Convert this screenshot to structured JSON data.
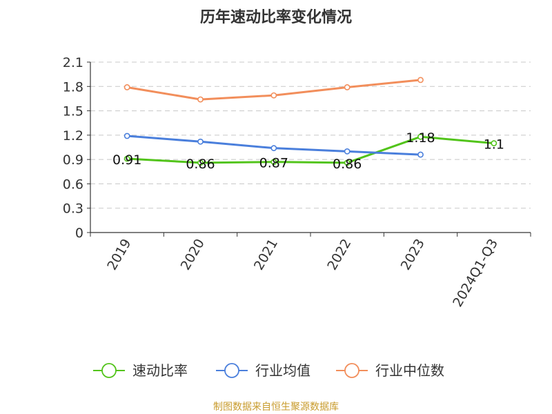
{
  "chart_data": {
    "type": "line",
    "title": "历年速动比率变化情况",
    "categories": [
      "2019",
      "2020",
      "2021",
      "2022",
      "2023",
      "2024Q1-Q3"
    ],
    "yticks": [
      "0",
      "0.3",
      "0.6",
      "0.9",
      "1.2",
      "1.5",
      "1.8",
      "2.1"
    ],
    "ylim": [
      0,
      2.1
    ],
    "grid": true,
    "legend_position": "bottom",
    "series": [
      {
        "name": "速动比率",
        "color": "#52c41a",
        "values": [
          0.91,
          0.86,
          0.87,
          0.86,
          1.18,
          1.1
        ],
        "labels": [
          "0.91",
          "0.86",
          "0.87",
          "0.86",
          "1.18",
          "1.1"
        ]
      },
      {
        "name": "行业均值",
        "color": "#4a7fdc",
        "values": [
          1.19,
          1.12,
          1.04,
          1.0,
          0.96,
          null
        ],
        "labels": []
      },
      {
        "name": "行业中位数",
        "color": "#f28e5b",
        "values": [
          1.79,
          1.64,
          1.69,
          1.79,
          1.88,
          null
        ],
        "labels": []
      }
    ]
  },
  "source": "制图数据来自恒生聚源数据库",
  "source_color": "#c89b2c"
}
